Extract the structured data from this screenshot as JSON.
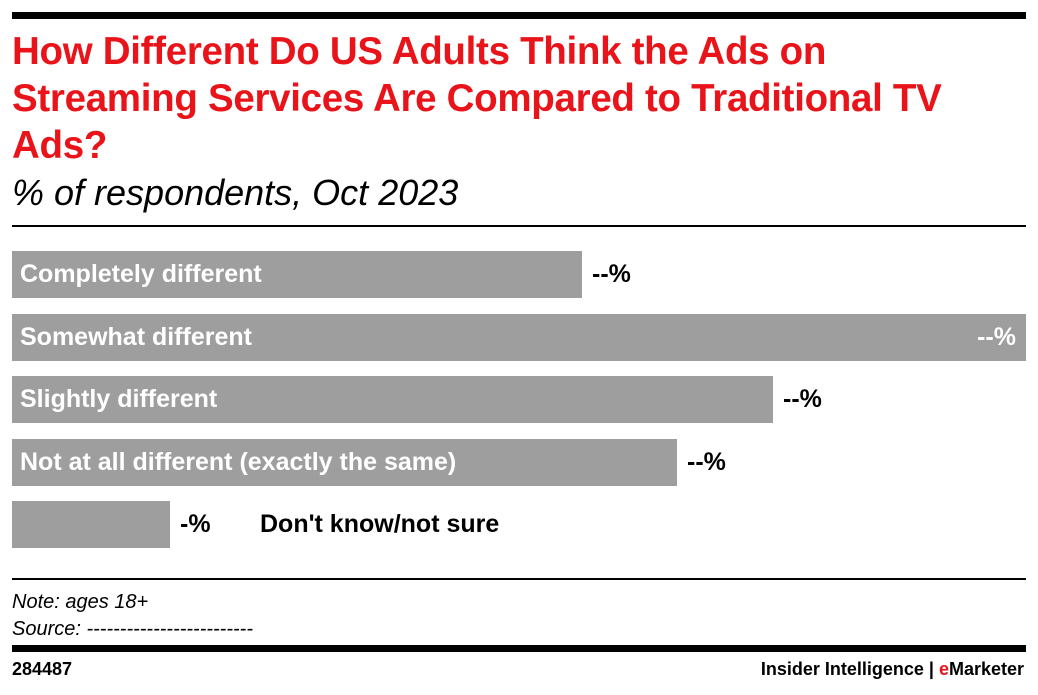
{
  "title": "How Different Do US Adults Think the Ads on Streaming Services Are Compared to Traditional TV Ads?",
  "subtitle": "% of respondents, Oct 2023",
  "chart_data": {
    "type": "bar",
    "orientation": "horizontal",
    "categories": [
      "Completely different",
      "Somewhat different",
      "Slightly different",
      "Not at all different (exactly the same)",
      "Don't know/not sure"
    ],
    "value_labels": [
      "--%",
      "--%",
      "--%",
      "--%",
      "-%"
    ],
    "values": [
      36,
      64,
      48,
      42,
      10
    ],
    "xlim": [
      0,
      64
    ],
    "bar_color": "#9e9e9e",
    "grid": false
  },
  "footer": {
    "note": "Note: ages 18+",
    "source": "Source: -------------------------",
    "chart_id": "284487",
    "brand_left": "Insider Intelligence | ",
    "brand_accent_letter": "e",
    "brand_right": "Marketer"
  },
  "colors": {
    "title": "#e8141a",
    "bar": "#9e9e9e",
    "rule": "#000000"
  }
}
